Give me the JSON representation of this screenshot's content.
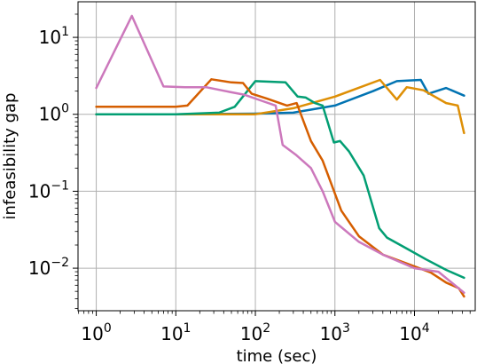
{
  "chart_data": {
    "type": "line",
    "xlabel": "time (sec)",
    "ylabel": "infeasibility gap",
    "xscale": "log",
    "yscale": "log",
    "xlim": [
      0.59,
      58000
    ],
    "ylim": [
      0.0028,
      29
    ],
    "grid": true,
    "xticks": [
      {
        "value": 1,
        "base": "10",
        "exp": "0"
      },
      {
        "value": 10,
        "base": "10",
        "exp": "1"
      },
      {
        "value": 100,
        "base": "10",
        "exp": "2"
      },
      {
        "value": 1000,
        "base": "10",
        "exp": "3"
      },
      {
        "value": 10000,
        "base": "10",
        "exp": "4"
      }
    ],
    "yticks": [
      {
        "value": 0.01,
        "base": "10",
        "exp": "−2"
      },
      {
        "value": 0.1,
        "base": "10",
        "exp": "−1"
      },
      {
        "value": 1,
        "base": "10",
        "exp": "0"
      },
      {
        "value": 10,
        "base": "10",
        "exp": "1"
      }
    ],
    "series": [
      {
        "color": "#0173b2",
        "points": [
          [
            1,
            1.0
          ],
          [
            10,
            1.0
          ],
          [
            100,
            1.02
          ],
          [
            300,
            1.05
          ],
          [
            1000,
            1.3
          ],
          [
            3000,
            2.0
          ],
          [
            6000,
            2.7
          ],
          [
            12000,
            2.8
          ],
          [
            15000,
            1.85
          ],
          [
            25000,
            2.2
          ],
          [
            42000,
            1.75
          ]
        ]
      },
      {
        "color": "#de8f05",
        "points": [
          [
            1,
            1.0
          ],
          [
            10,
            1.0
          ],
          [
            100,
            1.0
          ],
          [
            300,
            1.2
          ],
          [
            1000,
            1.7
          ],
          [
            3700,
            2.8
          ],
          [
            6000,
            1.55
          ],
          [
            8000,
            2.25
          ],
          [
            13000,
            2.05
          ],
          [
            25000,
            1.4
          ],
          [
            35000,
            1.3
          ],
          [
            42000,
            0.57
          ]
        ]
      },
      {
        "color": "#029e73",
        "points": [
          [
            1,
            1.0
          ],
          [
            10,
            1.0
          ],
          [
            35,
            1.05
          ],
          [
            55,
            1.25
          ],
          [
            100,
            2.7
          ],
          [
            240,
            2.6
          ],
          [
            340,
            1.7
          ],
          [
            430,
            1.65
          ],
          [
            560,
            1.4
          ],
          [
            700,
            1.3
          ],
          [
            970,
            0.43
          ],
          [
            1160,
            0.45
          ],
          [
            1500,
            0.33
          ],
          [
            2300,
            0.16
          ],
          [
            3600,
            0.033
          ],
          [
            4500,
            0.025
          ],
          [
            8000,
            0.018
          ],
          [
            14000,
            0.013
          ],
          [
            25000,
            0.0095
          ],
          [
            42000,
            0.0075
          ]
        ]
      },
      {
        "color": "#d55e00",
        "points": [
          [
            1,
            1.25
          ],
          [
            10,
            1.25
          ],
          [
            14,
            1.3
          ],
          [
            28,
            2.85
          ],
          [
            50,
            2.6
          ],
          [
            70,
            2.55
          ],
          [
            90,
            1.85
          ],
          [
            140,
            1.6
          ],
          [
            250,
            1.3
          ],
          [
            330,
            1.4
          ],
          [
            500,
            0.45
          ],
          [
            700,
            0.25
          ],
          [
            1200,
            0.056
          ],
          [
            2000,
            0.026
          ],
          [
            4000,
            0.015
          ],
          [
            8000,
            0.0115
          ],
          [
            16000,
            0.0088
          ],
          [
            25000,
            0.0065
          ],
          [
            36000,
            0.0055
          ],
          [
            42000,
            0.0043
          ]
        ]
      },
      {
        "color": "#cc78bc",
        "points": [
          [
            1,
            2.2
          ],
          [
            2.8,
            19
          ],
          [
            7,
            2.3
          ],
          [
            13,
            2.25
          ],
          [
            24,
            2.25
          ],
          [
            48,
            1.95
          ],
          [
            72,
            1.8
          ],
          [
            120,
            1.5
          ],
          [
            180,
            1.3
          ],
          [
            220,
            0.4
          ],
          [
            320,
            0.3
          ],
          [
            500,
            0.2
          ],
          [
            700,
            0.1
          ],
          [
            1000,
            0.04
          ],
          [
            2000,
            0.022
          ],
          [
            4000,
            0.015
          ],
          [
            10000,
            0.01
          ],
          [
            20000,
            0.009
          ],
          [
            42000,
            0.0048
          ]
        ]
      }
    ]
  }
}
